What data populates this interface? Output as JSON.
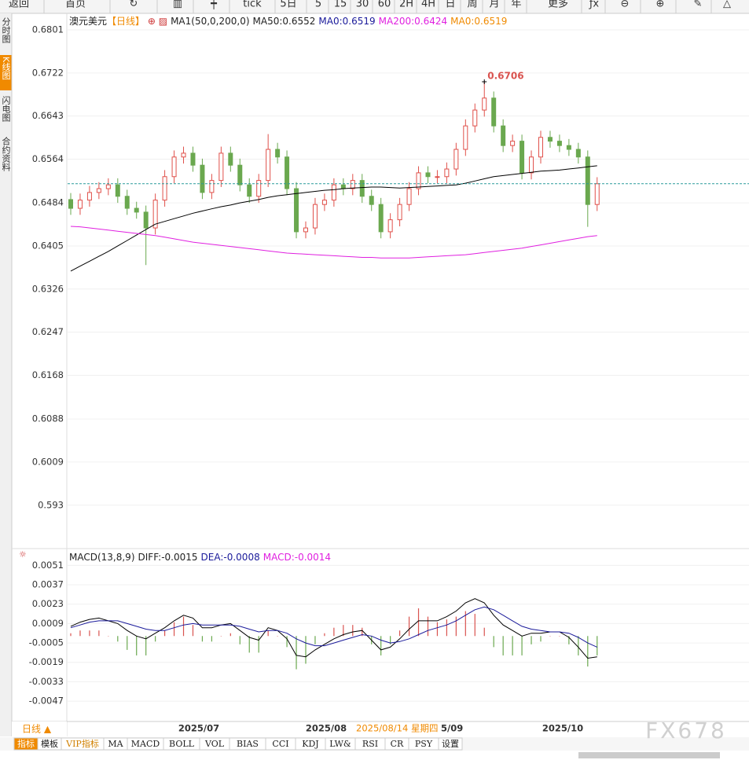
{
  "toolbar": {
    "items": [
      "返回",
      "首页",
      "tick",
      "5日",
      "5",
      "15",
      "30",
      "60",
      "2H",
      "4H",
      "日",
      "周",
      "月",
      "年",
      "更多"
    ]
  },
  "side_tabs": [
    "分时图",
    "K线图",
    "闪电图",
    "合约资料"
  ],
  "chart_data": [
    {
      "type": "candlestick",
      "title": "澳元美元",
      "period": "【日线】",
      "legend": [
        "MA1(50,0,200,0)",
        "MA50:0.6552",
        "MA0:0.6519",
        "MA200:0.6424",
        "MA0:0.6519"
      ],
      "legend_colors": [
        "#222222",
        "#222222",
        "#1a1a9a",
        "#e020e0",
        "#f08a00"
      ],
      "ylim": [
        0.5862,
        0.6824
      ],
      "yticks": [
        0.6801,
        0.6722,
        0.6643,
        0.6564,
        0.6484,
        0.6405,
        0.6326,
        0.6247,
        0.6168,
        0.6088,
        0.6009,
        0.593
      ],
      "grid": true,
      "up_color": "#e0504a",
      "down_color": "#6aa84f",
      "candles": {
        "open": [
          0.649,
          0.6474,
          0.6489,
          0.6503,
          0.651,
          0.6517,
          0.6496,
          0.6474,
          0.6467,
          0.6438,
          0.6489,
          0.6532,
          0.6568,
          0.6575,
          0.6553,
          0.6503,
          0.6525,
          0.6575,
          0.6553,
          0.6517,
          0.6496,
          0.6525,
          0.6582,
          0.6568,
          0.651,
          0.6431,
          0.6438,
          0.6481,
          0.6489,
          0.6517,
          0.651,
          0.6525,
          0.6496,
          0.6481,
          0.6431,
          0.6453,
          0.6481,
          0.651,
          0.6539,
          0.6532,
          0.6532,
          0.6546,
          0.6582,
          0.6625,
          0.6654,
          0.6676,
          0.6625,
          0.6589,
          0.6597,
          0.6539,
          0.6568,
          0.6604,
          0.6597,
          0.6589,
          0.6582,
          0.6568,
          0.6481
        ],
        "high": [
          0.6502,
          0.6501,
          0.6515,
          0.6522,
          0.6529,
          0.6529,
          0.6508,
          0.6486,
          0.6479,
          0.6501,
          0.6544,
          0.658,
          0.6587,
          0.6587,
          0.6565,
          0.6537,
          0.6587,
          0.6587,
          0.6565,
          0.6529,
          0.6537,
          0.661,
          0.6594,
          0.658,
          0.6522,
          0.645,
          0.6493,
          0.6501,
          0.6529,
          0.6529,
          0.6537,
          0.6537,
          0.6508,
          0.6493,
          0.6465,
          0.6493,
          0.6522,
          0.6551,
          0.6551,
          0.6544,
          0.6558,
          0.6594,
          0.6637,
          0.6666,
          0.6706,
          0.6688,
          0.6637,
          0.6609,
          0.6609,
          0.658,
          0.6616,
          0.6616,
          0.6609,
          0.6601,
          0.6594,
          0.658,
          0.6531
        ],
        "low": [
          0.6462,
          0.6462,
          0.6477,
          0.6491,
          0.6498,
          0.6484,
          0.6462,
          0.6455,
          0.637,
          0.6426,
          0.6477,
          0.652,
          0.6556,
          0.6541,
          0.6491,
          0.6491,
          0.6513,
          0.6541,
          0.6505,
          0.6484,
          0.6484,
          0.6513,
          0.6556,
          0.6498,
          0.6419,
          0.6419,
          0.6426,
          0.6469,
          0.6477,
          0.6498,
          0.6498,
          0.6484,
          0.6469,
          0.6419,
          0.6419,
          0.6441,
          0.6469,
          0.6498,
          0.652,
          0.652,
          0.652,
          0.6534,
          0.657,
          0.6613,
          0.6642,
          0.6613,
          0.6577,
          0.6577,
          0.6527,
          0.6527,
          0.6556,
          0.6585,
          0.6577,
          0.657,
          0.6556,
          0.644,
          0.6469
        ],
        "close": [
          0.6474,
          0.6489,
          0.6503,
          0.651,
          0.6517,
          0.6496,
          0.6474,
          0.6467,
          0.6438,
          0.6489,
          0.6532,
          0.6568,
          0.6575,
          0.6553,
          0.6503,
          0.6525,
          0.6575,
          0.6553,
          0.6517,
          0.6496,
          0.6525,
          0.6582,
          0.6568,
          0.651,
          0.6431,
          0.6438,
          0.6481,
          0.6489,
          0.6517,
          0.651,
          0.6525,
          0.6496,
          0.6481,
          0.6431,
          0.6453,
          0.6481,
          0.651,
          0.6539,
          0.6532,
          0.6532,
          0.6546,
          0.6582,
          0.6625,
          0.6654,
          0.6676,
          0.6625,
          0.6589,
          0.6597,
          0.6539,
          0.6568,
          0.6604,
          0.6597,
          0.6589,
          0.6582,
          0.6568,
          0.6481,
          0.6519
        ]
      },
      "series": [
        {
          "color": "#000000",
          "values": [
            0.6359,
            0.6368,
            0.6377,
            0.6386,
            0.6395,
            0.6405,
            0.6415,
            0.6425,
            0.6435,
            0.6445,
            0.645,
            0.6455,
            0.646,
            0.6465,
            0.6469,
            0.6473,
            0.6477,
            0.648,
            0.6484,
            0.6487,
            0.649,
            0.6494,
            0.6497,
            0.6499,
            0.6501,
            0.6503,
            0.6505,
            0.6507,
            0.6508,
            0.651,
            0.6511,
            0.6512,
            0.6513,
            0.6513,
            0.6512,
            0.6511,
            0.6512,
            0.6513,
            0.6514,
            0.6515,
            0.6516,
            0.6517,
            0.652,
            0.6524,
            0.6528,
            0.6532,
            0.6534,
            0.6536,
            0.6538,
            0.654,
            0.6542,
            0.6543,
            0.6544,
            0.6546,
            0.6548,
            0.655,
            0.6552
          ]
        },
        {
          "color": "#e020e0",
          "values": [
            0.6441,
            0.644,
            0.6438,
            0.6436,
            0.6434,
            0.6432,
            0.643,
            0.6428,
            0.6426,
            0.6424,
            0.6421,
            0.6418,
            0.6415,
            0.6412,
            0.641,
            0.6408,
            0.6406,
            0.6404,
            0.6402,
            0.64,
            0.6398,
            0.6396,
            0.6394,
            0.6392,
            0.6391,
            0.639,
            0.6389,
            0.6388,
            0.6387,
            0.6386,
            0.6385,
            0.6384,
            0.6384,
            0.6383,
            0.6383,
            0.6383,
            0.6383,
            0.6384,
            0.6385,
            0.6386,
            0.6387,
            0.6388,
            0.6389,
            0.6391,
            0.6393,
            0.6395,
            0.6397,
            0.6399,
            0.6401,
            0.6404,
            0.6407,
            0.641,
            0.6413,
            0.6416,
            0.6419,
            0.6422,
            0.6424
          ]
        }
      ],
      "last_price_line": 0.6519,
      "last_price_color": "#2a9a9a"
    },
    {
      "type": "macd",
      "legend": [
        "MACD(13,8,9)",
        "DIFF:-0.0015",
        "DEA:-0.0008",
        "MACD:-0.0014"
      ],
      "legend_colors": [
        "#222222",
        "#222222",
        "#1a1a9a",
        "#e020e0"
      ],
      "ylim": [
        -0.006,
        0.0062
      ],
      "yticks": [
        0.0051,
        0.0037,
        0.0023,
        0.0009,
        -0.0005,
        -0.0019,
        -0.0033,
        -0.0047
      ],
      "grid": true,
      "series": [
        {
          "color": "#000000",
          "values": [
            0.0007,
            0.001,
            0.0012,
            0.0013,
            0.0011,
            0.0009,
            0.0004,
            0.0,
            -0.0002,
            0.0002,
            0.0006,
            0.0011,
            0.0015,
            0.0013,
            0.0006,
            0.0006,
            0.0008,
            0.0009,
            0.0004,
            -0.0001,
            -0.0003,
            0.0006,
            0.0004,
            -0.0002,
            -0.0014,
            -0.0015,
            -0.001,
            -0.0006,
            -0.0002,
            0.0001,
            0.0003,
            0.0004,
            -0.0003,
            -0.001,
            -0.0008,
            -0.0002,
            0.0005,
            0.0011,
            0.0011,
            0.0011,
            0.0014,
            0.0018,
            0.0024,
            0.0027,
            0.0024,
            0.0015,
            0.0008,
            0.0004,
            0.0,
            0.0002,
            0.0002,
            0.0003,
            0.0003,
            -0.0001,
            -0.0008,
            -0.0016,
            -0.0015
          ]
        },
        {
          "color": "#1a1a9a",
          "values": [
            0.0006,
            0.0008,
            0.001,
            0.0011,
            0.0011,
            0.0011,
            0.0009,
            0.0007,
            0.0005,
            0.0004,
            0.0004,
            0.0006,
            0.0008,
            0.0009,
            0.0008,
            0.0008,
            0.0008,
            0.0008,
            0.0007,
            0.0005,
            0.0003,
            0.0004,
            0.0004,
            0.0002,
            -0.0002,
            -0.0005,
            -0.0007,
            -0.0007,
            -0.0005,
            -0.0003,
            -0.0001,
            0.0001,
            0.0,
            -0.0003,
            -0.0005,
            -0.0004,
            -0.0002,
            0.0001,
            0.0004,
            0.0006,
            0.0008,
            0.0011,
            0.0015,
            0.0019,
            0.0021,
            0.0019,
            0.0015,
            0.0011,
            0.0007,
            0.0005,
            0.0004,
            0.0003,
            0.0003,
            0.0002,
            -0.0001,
            -0.0005,
            -0.0008
          ]
        }
      ],
      "bars": [
        0.0002,
        0.0004,
        0.0004,
        0.0004,
        0,
        -0.0004,
        -0.001,
        -0.0014,
        -0.0014,
        -0.0004,
        0.0004,
        0.001,
        0.0014,
        0.0008,
        -0.0004,
        -0.0004,
        0,
        0.0002,
        -0.0006,
        -0.0012,
        -0.0012,
        0.0004,
        0,
        -0.0008,
        -0.0024,
        -0.002,
        -0.0006,
        0.0002,
        0.0006,
        0.0008,
        0.0008,
        0.0006,
        -0.0006,
        -0.0014,
        -0.0006,
        0.0004,
        0.0014,
        0.002,
        0.0014,
        0.001,
        0.0012,
        0.0014,
        0.0018,
        0.0016,
        0.0006,
        -0.0008,
        -0.0014,
        -0.0014,
        -0.0014,
        -0.0006,
        -0.0004,
        0,
        0,
        -0.0006,
        -0.0014,
        -0.0022,
        -0.0014
      ],
      "up_color": "#d9534f",
      "down_color": "#6aa84f"
    }
  ],
  "time_axis": {
    "period": "日线 ▲",
    "labels": [
      "2025/07",
      "2025/08",
      "2025/08/14 星期四",
      "5/09",
      "2025/10"
    ]
  },
  "indicator_tabs": [
    "指标",
    "模板",
    "VIP指标",
    "MA",
    "MACD",
    "BOLL",
    "VOL",
    "BIAS",
    "CCI",
    "KDJ",
    "LW&",
    "RSI",
    "CR",
    "PSY",
    "设置"
  ],
  "watermark": "FX678"
}
